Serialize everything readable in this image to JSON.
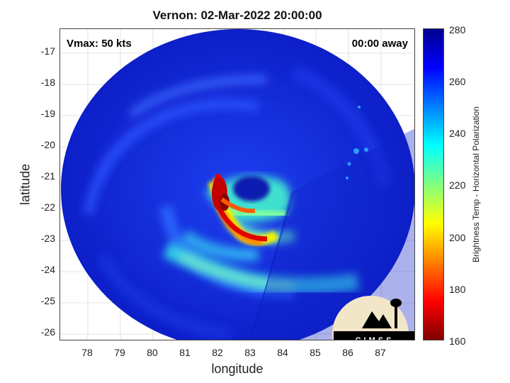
{
  "title": "Vernon: 02-Mar-2022 20:00:00",
  "vmax_label": "Vmax: 50 kts",
  "away_label": "00:00 away",
  "x_axis_label": "longitude",
  "y_axis_label": "latitude",
  "x_ticks": [
    "78",
    "79",
    "80",
    "81",
    "82",
    "83",
    "84",
    "85",
    "86",
    "87"
  ],
  "y_ticks": [
    "-17",
    "-18",
    "-19",
    "-20",
    "-21",
    "-22",
    "-23",
    "-24",
    "-25",
    "-26"
  ],
  "colorbar": {
    "label": "Brightness Temp - Horizontal Polarization",
    "ticks": [
      "280",
      "260",
      "240",
      "220",
      "200",
      "180",
      "160"
    ],
    "range": [
      160,
      280
    ],
    "colors": [
      "#7f0000",
      "#ff0000",
      "#ff8000",
      "#ffff00",
      "#80ff80",
      "#00ffff",
      "#0080ff",
      "#0000ff",
      "#00008f"
    ]
  },
  "logo_text": "CIMSS"
}
